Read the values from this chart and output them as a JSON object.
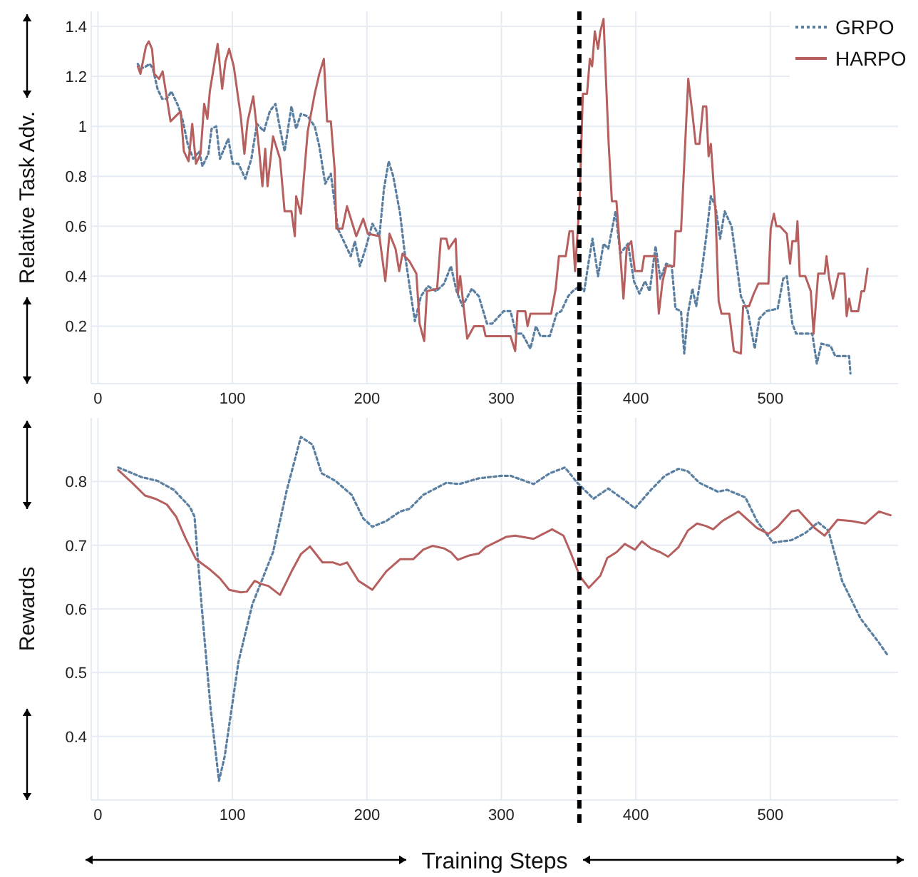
{
  "chart_data": [
    {
      "type": "line",
      "ylabel": "Relative Task Adv.",
      "xlim": [
        -5,
        595
      ],
      "xticks": [
        0,
        100,
        200,
        300,
        400,
        500
      ],
      "ylim": [
        -0.03,
        1.46
      ],
      "yticks": [
        0.2,
        0.4,
        0.6,
        0.8,
        1,
        1.2,
        1.4
      ],
      "grid": true,
      "legend": "top right",
      "ref_lines": [
        {
          "axis": "x",
          "value": 358,
          "color": "#000000",
          "line_style": "dashed"
        }
      ],
      "series": [
        {
          "name": "GRPO",
          "color": "#5b7fa0",
          "line_style": "dotted",
          "x": [
            29.6,
            31.6,
            35.7,
            38.5,
            40.9,
            44.3,
            47.8,
            51.2,
            54.6,
            59.8,
            63.2,
            66.7,
            70.8,
            75.3,
            77.7,
            82.1,
            84.5,
            88,
            90.7,
            96.9,
            100.3,
            104.5,
            109.6,
            114.1,
            118.2,
            123.4,
            127.8,
            132,
            135.4,
            138.8,
            143.9,
            147.4,
            150.9,
            156,
            161.2,
            164.6,
            169,
            173.2,
            178.4,
            182.8,
            188,
            191.1,
            194.8,
            199,
            204.1,
            209.3,
            212.7,
            216.2,
            219.6,
            224.7,
            228.2,
            232.3,
            235.7,
            240.2,
            245.4,
            251.5,
            257.4,
            262.5,
            266.7,
            271.1,
            278,
            283.2,
            289.3,
            293.2,
            301.7,
            306.8,
            311,
            315.4,
            321.6,
            325.7,
            329.1,
            336,
            341.1,
            344.5,
            349.7,
            353.1,
            358.2,
            361.6,
            365,
            367.8,
            371.9,
            376,
            379.5,
            384.9,
            388.4,
            394.2,
            398.6,
            402.7,
            406.8,
            410.3,
            414.7,
            418.2,
            422.6,
            426.7,
            429.5,
            433.6,
            436,
            438.7,
            442.1,
            444.9,
            449,
            452.4,
            455.8,
            459.2,
            462.7,
            466.1,
            471.2,
            474,
            478.1,
            483.2,
            488.4,
            491.8,
            497,
            505.5,
            509.6,
            512.3,
            516.4,
            519.2,
            531.2,
            534.6,
            538,
            544.9,
            548.3,
            558.6,
            559.6
          ],
          "values": [
            1.25,
            1.23,
            1.24,
            1.25,
            1.23,
            1.15,
            1.11,
            1.11,
            1.14,
            1.08,
            1.02,
            0.93,
            0.87,
            0.9,
            0.84,
            0.89,
            0.99,
            1.0,
            0.87,
            0.95,
            0.85,
            0.85,
            0.79,
            0.87,
            1.01,
            0.98,
            1.06,
            1.09,
            0.99,
            0.9,
            1.08,
            0.99,
            1.05,
            1.04,
            1.0,
            0.92,
            0.77,
            0.81,
            0.59,
            0.54,
            0.48,
            0.54,
            0.44,
            0.51,
            0.61,
            0.56,
            0.75,
            0.86,
            0.8,
            0.65,
            0.49,
            0.34,
            0.22,
            0.32,
            0.36,
            0.34,
            0.37,
            0.44,
            0.34,
            0.28,
            0.35,
            0.32,
            0.21,
            0.21,
            0.26,
            0.26,
            0.17,
            0.17,
            0.11,
            0.2,
            0.16,
            0.16,
            0.25,
            0.26,
            0.32,
            0.34,
            0.36,
            0.34,
            0.46,
            0.55,
            0.4,
            0.53,
            0.51,
            0.66,
            0.49,
            0.53,
            0.38,
            0.33,
            0.38,
            0.34,
            0.52,
            0.39,
            0.45,
            0.44,
            0.27,
            0.26,
            0.09,
            0.25,
            0.35,
            0.28,
            0.42,
            0.56,
            0.72,
            0.68,
            0.55,
            0.66,
            0.6,
            0.49,
            0.32,
            0.26,
            0.11,
            0.23,
            0.26,
            0.27,
            0.39,
            0.4,
            0.21,
            0.17,
            0.17,
            0.05,
            0.13,
            0.12,
            0.08,
            0.08,
            0.01
          ]
        },
        {
          "name": "HARPO",
          "color": "#b5605e",
          "line_style": "solid",
          "x": [
            29.6,
            31.6,
            35.7,
            37.8,
            40.2,
            41.9,
            45.4,
            48.1,
            54,
            61.5,
            63.9,
            67.4,
            70.1,
            72.9,
            76.3,
            79,
            81.4,
            83.2,
            89,
            92.4,
            94.8,
            97.6,
            101,
            106.2,
            108.9,
            111.3,
            115.5,
            119.6,
            122.3,
            124.4,
            126.1,
            130.2,
            135.4,
            138.8,
            143.9,
            146.4,
            147.4,
            150.9,
            156,
            161.2,
            164.6,
            168,
            170.4,
            173.2,
            176,
            177.3,
            181.8,
            185.2,
            192.1,
            197.3,
            200.7,
            209.3,
            213.7,
            216.8,
            221.3,
            224,
            226.5,
            231.6,
            236.8,
            239.2,
            242.6,
            244.7,
            252.2,
            255,
            259.1,
            260.8,
            266,
            267.7,
            269.4,
            274.6,
            279.7,
            286.6,
            288.3,
            306.8,
            310.3,
            312,
            317.8,
            319.5,
            321.6,
            337,
            340.4,
            342.8,
            347.9,
            350.7,
            353.1,
            354.8,
            358.2,
            360.6,
            363.7,
            365.8,
            367.5,
            369.5,
            371.9,
            373.6,
            376,
            377.4,
            379.8,
            382.2,
            385.6,
            390.8,
            393.2,
            396.6,
            399.3,
            404.5,
            406.2,
            414.7,
            417.1,
            419.9,
            422.6,
            428.4,
            429.5,
            433.6,
            436,
            439,
            442.1,
            444.5,
            447.3,
            450,
            452.4,
            454.1,
            455.8,
            459.2,
            461.6,
            463.7,
            469.5,
            472.9,
            478.1,
            479.8,
            484.2,
            487.7,
            491.1,
            498.6,
            500.3,
            502.7,
            504.5,
            507.2,
            512.3,
            514.7,
            516.4,
            519.2,
            520.2,
            521.9,
            526,
            530.1,
            532.2,
            535.6,
            540.4,
            541.8,
            543.8,
            546.6,
            550.7,
            555.1,
            556.8,
            558.6,
            560.3,
            565.4,
            567.8,
            569.9,
            572.3
          ],
          "values": [
            1.24,
            1.21,
            1.32,
            1.34,
            1.31,
            1.21,
            1.19,
            1.22,
            1.02,
            1.06,
            0.9,
            0.86,
            1.01,
            0.85,
            0.89,
            1.09,
            1.03,
            1.14,
            1.33,
            1.15,
            1.26,
            1.31,
            1.24,
            1.04,
            0.89,
            1.02,
            1.12,
            0.92,
            0.76,
            0.91,
            0.76,
            0.96,
            0.87,
            0.66,
            0.66,
            0.56,
            0.72,
            0.65,
            0.98,
            1.13,
            1.21,
            1.27,
            1.02,
            1.02,
            0.83,
            0.59,
            0.59,
            0.68,
            0.56,
            0.63,
            0.57,
            0.56,
            0.38,
            0.57,
            0.51,
            0.42,
            0.49,
            0.46,
            0.41,
            0.21,
            0.14,
            0.34,
            0.35,
            0.55,
            0.55,
            0.51,
            0.55,
            0.33,
            0.4,
            0.15,
            0.2,
            0.2,
            0.16,
            0.16,
            0.1,
            0.26,
            0.26,
            0.2,
            0.25,
            0.25,
            0.35,
            0.48,
            0.48,
            0.58,
            0.58,
            0.42,
            0.7,
            1.13,
            1.13,
            1.27,
            1.24,
            1.38,
            1.31,
            1.38,
            1.43,
            1.24,
            0.93,
            0.7,
            0.7,
            0.31,
            0.51,
            0.54,
            0.42,
            0.42,
            0.48,
            0.48,
            0.25,
            0.38,
            0.44,
            0.44,
            0.58,
            0.58,
            0.85,
            1.19,
            1.05,
            0.93,
            0.93,
            1.08,
            1.08,
            0.88,
            0.93,
            0.66,
            0.3,
            0.25,
            0.25,
            0.1,
            0.09,
            0.28,
            0.28,
            0.33,
            0.37,
            0.37,
            0.59,
            0.65,
            0.6,
            0.6,
            0.57,
            0.45,
            0.54,
            0.54,
            0.62,
            0.4,
            0.4,
            0.34,
            0.17,
            0.41,
            0.41,
            0.48,
            0.39,
            0.31,
            0.41,
            0.41,
            0.24,
            0.31,
            0.26,
            0.26,
            0.34,
            0.34,
            0.43
          ]
        }
      ]
    },
    {
      "type": "line",
      "xlabel": "Training Steps",
      "ylabel": "Rewards",
      "xlim": [
        -5,
        595
      ],
      "xticks": [
        0,
        100,
        200,
        300,
        400,
        500
      ],
      "ylim": [
        0.3,
        0.9
      ],
      "yticks": [
        0.4,
        0.5,
        0.6,
        0.7,
        0.8
      ],
      "grid": true,
      "ref_lines": [
        {
          "axis": "x",
          "value": 358,
          "color": "#000000",
          "line_style": "dashed"
        }
      ],
      "series": [
        {
          "color": "#5b7fa0",
          "line_style": "dotted",
          "x": [
            15.1,
            32.3,
            44.3,
            56.4,
            68.4,
            71.8,
            77,
            83.8,
            90,
            94.2,
            104.5,
            114.8,
            130.2,
            140.5,
            150.9,
            159.5,
            166.3,
            176.6,
            188.7,
            197.3,
            204.1,
            214.4,
            224.7,
            231.6,
            241.9,
            259.1,
            268.7,
            283.2,
            300,
            306.8,
            324,
            336,
            347.3,
            356.5,
            368.5,
            379.5,
            390.8,
            399.3,
            411.3,
            421.6,
            431.8,
            438.7,
            447.3,
            461,
            467.8,
            481.5,
            490.1,
            502,
            515.8,
            526,
            535.6,
            543.2,
            553.4,
            567.1,
            580.8,
            587.7
          ],
          "values": [
            0.822,
            0.807,
            0.801,
            0.787,
            0.76,
            0.745,
            0.607,
            0.443,
            0.33,
            0.368,
            0.517,
            0.607,
            0.689,
            0.787,
            0.87,
            0.858,
            0.813,
            0.801,
            0.779,
            0.742,
            0.729,
            0.738,
            0.753,
            0.757,
            0.779,
            0.798,
            0.796,
            0.805,
            0.809,
            0.809,
            0.796,
            0.813,
            0.822,
            0.798,
            0.773,
            0.789,
            0.772,
            0.758,
            0.787,
            0.809,
            0.82,
            0.816,
            0.798,
            0.784,
            0.787,
            0.775,
            0.738,
            0.704,
            0.708,
            0.719,
            0.736,
            0.723,
            0.644,
            0.585,
            0.547,
            0.526
          ]
        },
        {
          "color": "#b5605e",
          "line_style": "solid",
          "x": [
            15.1,
            25.4,
            35,
            42.6,
            51.2,
            58.1,
            64.9,
            72.9,
            83.8,
            90.7,
            97.6,
            106.2,
            110.7,
            116.5,
            121.6,
            126.8,
            135.4,
            144,
            150.9,
            157.7,
            167,
            174.9,
            180,
            185.2,
            193.8,
            204.1,
            214.4,
            224.7,
            234.4,
            241.9,
            248.8,
            257.4,
            262.5,
            267.7,
            276.3,
            283.2,
            288.3,
            296.9,
            303.4,
            310.3,
            324,
            337.7,
            346.2,
            351.4,
            358.2,
            365,
            373.6,
            378.8,
            385.6,
            391.8,
            399.3,
            404.5,
            411.3,
            418.2,
            424,
            431.8,
            438.7,
            445.5,
            452.4,
            457.5,
            464.4,
            476.4,
            490.1,
            498.6,
            505.5,
            515.8,
            520.9,
            532.9,
            540.4,
            550,
            560.3,
            570.6,
            580.8,
            589.4
          ],
          "values": [
            0.818,
            0.798,
            0.778,
            0.773,
            0.764,
            0.745,
            0.712,
            0.678,
            0.661,
            0.648,
            0.63,
            0.626,
            0.627,
            0.644,
            0.639,
            0.636,
            0.622,
            0.659,
            0.686,
            0.698,
            0.673,
            0.673,
            0.669,
            0.673,
            0.644,
            0.63,
            0.659,
            0.678,
            0.678,
            0.693,
            0.699,
            0.695,
            0.689,
            0.677,
            0.684,
            0.687,
            0.697,
            0.706,
            0.713,
            0.715,
            0.71,
            0.725,
            0.715,
            0.689,
            0.652,
            0.633,
            0.652,
            0.68,
            0.689,
            0.702,
            0.693,
            0.706,
            0.695,
            0.689,
            0.682,
            0.697,
            0.723,
            0.734,
            0.73,
            0.725,
            0.738,
            0.753,
            0.727,
            0.718,
            0.729,
            0.753,
            0.755,
            0.727,
            0.715,
            0.74,
            0.738,
            0.734,
            0.753,
            0.747
          ]
        }
      ]
    }
  ]
}
